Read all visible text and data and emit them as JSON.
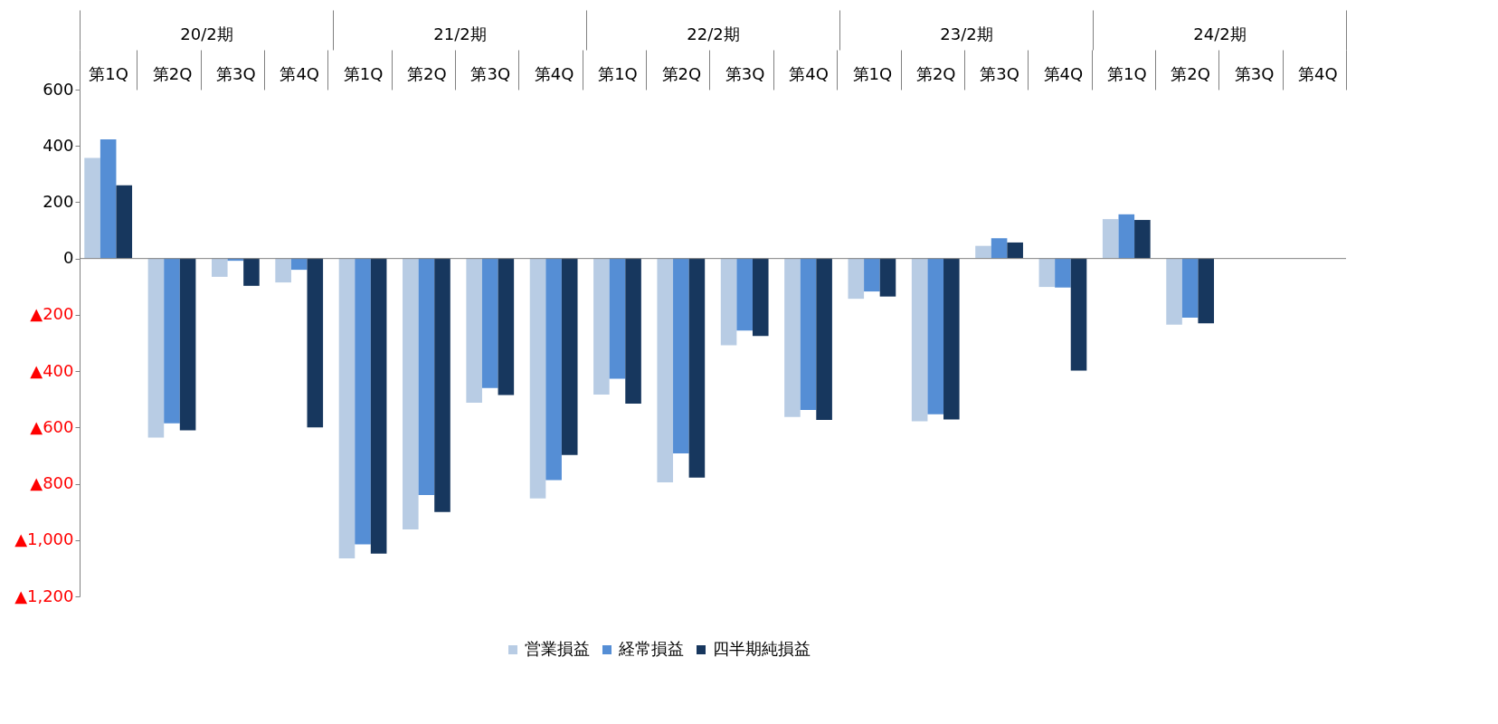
{
  "chart_data": {
    "type": "bar",
    "categories": [
      "第1Q",
      "第2Q",
      "第3Q",
      "第4Q",
      "第1Q",
      "第2Q",
      "第3Q",
      "第4Q",
      "第1Q",
      "第2Q",
      "第3Q",
      "第4Q",
      "第1Q",
      "第2Q",
      "第3Q",
      "第4Q",
      "第1Q",
      "第2Q",
      "第3Q",
      "第4Q"
    ],
    "annotations": [
      "20/2期",
      "21/2期",
      "22/2期",
      "23/2期",
      "24/2期"
    ],
    "series": [
      {
        "name": "営業損益",
        "color": "#b8cce4",
        "values": [
          357,
          -636,
          -65,
          -85,
          -1065,
          -962,
          -512,
          -852,
          -483,
          -795,
          -308,
          -563,
          -143,
          -578,
          45,
          -101,
          140,
          -235,
          null,
          null
        ]
      },
      {
        "name": "経常損益",
        "color": "#558ed5",
        "values": [
          423,
          -585,
          -8,
          -40,
          -1015,
          -840,
          -460,
          -787,
          -427,
          -692,
          -256,
          -538,
          -117,
          -553,
          72,
          -103,
          157,
          -210,
          null,
          null
        ]
      },
      {
        "name": "四半期純損益",
        "color": "#17375e",
        "values": [
          260,
          -610,
          -97,
          -600,
          -1048,
          -900,
          -485,
          -698,
          -515,
          -778,
          -275,
          -573,
          -135,
          -572,
          57,
          -398,
          137,
          -230,
          null,
          null
        ]
      }
    ],
    "ylim": [
      -1200,
      600
    ],
    "yticks": [
      {
        "value": -1200,
        "label": "▲1,200"
      },
      {
        "value": -1000,
        "label": "▲1,000"
      },
      {
        "value": -800,
        "label": "▲800"
      },
      {
        "value": -600,
        "label": "▲600"
      },
      {
        "value": -400,
        "label": "▲400"
      },
      {
        "value": -200,
        "label": "▲200"
      },
      0,
      200,
      400,
      600
    ],
    "grid": false,
    "ref_lines": [
      {
        "axis": "y",
        "value": 0,
        "color": "#808080"
      }
    ],
    "legend": "bottom"
  }
}
